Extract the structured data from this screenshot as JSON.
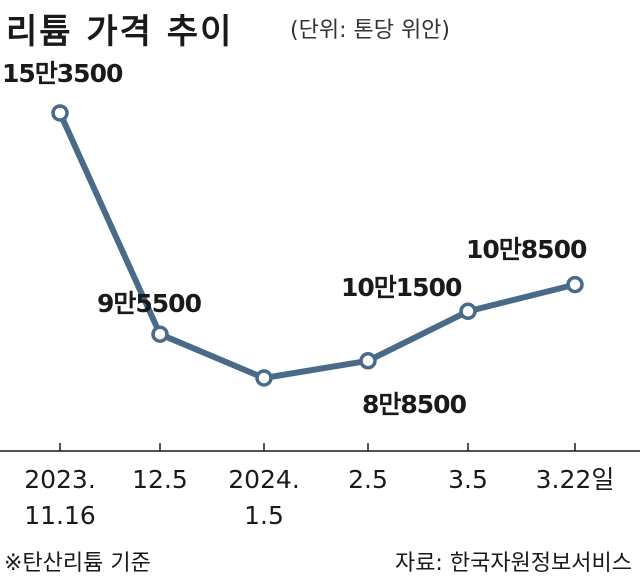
{
  "chart_data": {
    "type": "line",
    "title": "리튬 가격 추이",
    "unit": "(단위: 톤당 위안)",
    "categories": [
      [
        "2023.",
        "11.16"
      ],
      [
        "12.5"
      ],
      [
        "2024.",
        "1.5"
      ],
      [
        "2.5"
      ],
      [
        "3.5"
      ],
      [
        "3.22일"
      ]
    ],
    "values": [
      153500,
      95500,
      84000,
      88500,
      101500,
      108500
    ],
    "value_labels": [
      "15만3500",
      "9만5500",
      "",
      "8만8500",
      "10만1500",
      "10만8500"
    ],
    "ylim": [
      60000,
      160000
    ],
    "grid": false,
    "line_color": "#4a6a8a",
    "marker_fill": "#ffffff"
  },
  "footer": {
    "note": "※탄산리튬 기준",
    "source": "자료: 한국자원정보서비스"
  }
}
